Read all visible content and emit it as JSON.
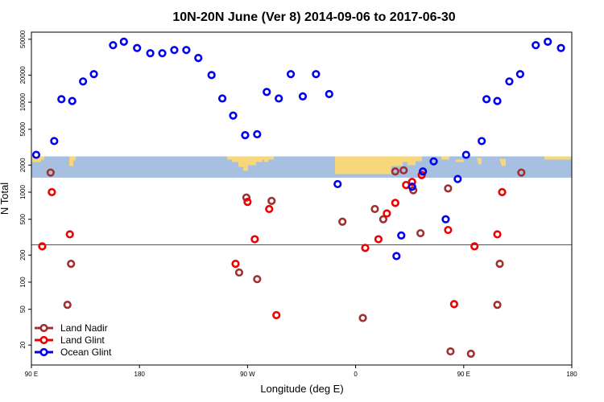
{
  "chart_data": {
    "type": "scatter",
    "title": "10N-20N June (Ver 8)   2014-09-06 to 2017-06-30",
    "xlabel": "Longitude (deg E)",
    "ylabel": "N Total",
    "x_ticks": [
      {
        "value": 90,
        "label": "90 E"
      },
      {
        "value": 180,
        "label": "180"
      },
      {
        "value": 270,
        "label": "90 W"
      },
      {
        "value": 360,
        "label": "0"
      },
      {
        "value": 450,
        "label": "90 E"
      },
      {
        "value": 540,
        "label": "180"
      }
    ],
    "xlim": [
      90,
      540
    ],
    "y_scale": "log",
    "ylim": [
      12,
      60000
    ],
    "y_ticks": [
      20,
      50,
      100,
      200,
      500,
      1000,
      2000,
      5000,
      10000,
      20000,
      50000
    ],
    "reference_line_y": 260,
    "map_band": {
      "ymin": 1450,
      "ymax": 2500,
      "ocean_color": "#a7bfe0",
      "land_color": "#f7d77a"
    },
    "legend_position": "bottom-left",
    "series": [
      {
        "name": "Land Nadir",
        "color": "#a03030",
        "points": [
          [
            106,
            1650
          ],
          [
            120,
            56
          ],
          [
            123,
            160
          ],
          [
            263,
            128
          ],
          [
            269,
            870
          ],
          [
            278,
            108
          ],
          [
            290,
            800
          ],
          [
            349,
            470
          ],
          [
            366,
            40
          ],
          [
            376,
            650
          ],
          [
            383,
            500
          ],
          [
            393,
            1700
          ],
          [
            400,
            1750
          ],
          [
            408,
            1050
          ],
          [
            414,
            350
          ],
          [
            437,
            1100
          ],
          [
            439,
            17
          ],
          [
            456,
            16
          ],
          [
            478,
            56
          ],
          [
            480,
            160
          ],
          [
            498,
            1650
          ]
        ]
      },
      {
        "name": "Land Glint",
        "color": "#ee0000",
        "points": [
          [
            99,
            250
          ],
          [
            107,
            1000
          ],
          [
            122,
            340
          ],
          [
            260,
            160
          ],
          [
            270,
            780
          ],
          [
            276,
            300
          ],
          [
            288,
            650
          ],
          [
            294,
            43
          ],
          [
            368,
            240
          ],
          [
            379,
            300
          ],
          [
            386,
            580
          ],
          [
            393,
            760
          ],
          [
            402,
            1200
          ],
          [
            407,
            1300
          ],
          [
            415,
            1550
          ],
          [
            437,
            380
          ],
          [
            442,
            57
          ],
          [
            459,
            250
          ],
          [
            478,
            340
          ],
          [
            482,
            1000
          ]
        ]
      },
      {
        "name": "Ocean Glint",
        "color": "#0000ee",
        "points": [
          [
            94,
            2600
          ],
          [
            109,
            3700
          ],
          [
            115,
            10800
          ],
          [
            124,
            10300
          ],
          [
            133,
            17000
          ],
          [
            142,
            20500
          ],
          [
            158,
            43000
          ],
          [
            167,
            47000
          ],
          [
            178,
            40000
          ],
          [
            189,
            35000
          ],
          [
            199,
            35000
          ],
          [
            209,
            38000
          ],
          [
            219,
            38000
          ],
          [
            229,
            31000
          ],
          [
            240,
            20000
          ],
          [
            249,
            11000
          ],
          [
            258,
            7100
          ],
          [
            268,
            4300
          ],
          [
            278,
            4400
          ],
          [
            286,
            13000
          ],
          [
            296,
            11000
          ],
          [
            306,
            20500
          ],
          [
            316,
            11600
          ],
          [
            327,
            20500
          ],
          [
            338,
            12300
          ],
          [
            345,
            1230
          ],
          [
            394,
            195
          ],
          [
            398,
            330
          ],
          [
            407,
            1150
          ],
          [
            416,
            1700
          ],
          [
            425,
            2200
          ],
          [
            435,
            500
          ],
          [
            445,
            1400
          ],
          [
            452,
            2600
          ],
          [
            465,
            3700
          ],
          [
            469,
            10800
          ],
          [
            478,
            10300
          ],
          [
            488,
            17000
          ],
          [
            497,
            20500
          ],
          [
            510,
            43000
          ],
          [
            520,
            47000
          ],
          [
            531,
            40000
          ]
        ]
      }
    ]
  }
}
